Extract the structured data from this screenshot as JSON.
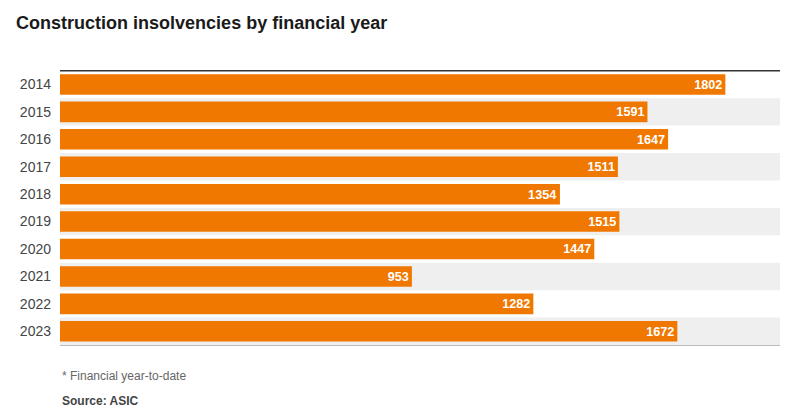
{
  "chart_data": {
    "type": "bar",
    "orientation": "horizontal",
    "title": "Construction insolvencies by financial year",
    "categories": [
      "2014",
      "2015",
      "2016",
      "2017",
      "2018",
      "2019",
      "2020",
      "2021",
      "2022",
      "2023"
    ],
    "values": [
      1802,
      1591,
      1647,
      1511,
      1354,
      1515,
      1447,
      953,
      1282,
      1672
    ],
    "color": "#F07800",
    "xlim": [
      0,
      1950
    ],
    "tick_labels": "y",
    "grid": false,
    "data_labels": true,
    "annotations": [
      "* Financial year-to-date",
      "Source: ASIC"
    ]
  }
}
